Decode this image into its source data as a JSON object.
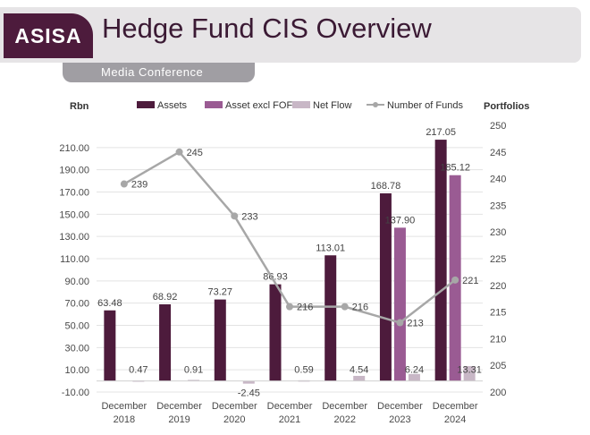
{
  "header": {
    "logo_text": "ASISA",
    "title": "Hedge Fund CIS Overview",
    "subtitle": "Media Conference"
  },
  "colors": {
    "assets": "#4d1b3c",
    "asset_excl_fof": "#9a5b93",
    "net_flow": "#c8b7c6",
    "number_of_funds": "#a7a7a7"
  },
  "chart_data": {
    "type": "bar",
    "ylabel": "Rbn",
    "y2label": "Portfolios",
    "categories": [
      [
        "December",
        "2018"
      ],
      [
        "December",
        "2019"
      ],
      [
        "December",
        "2020"
      ],
      [
        "December",
        "2021"
      ],
      [
        "December",
        "2022"
      ],
      [
        "December",
        "2023"
      ],
      [
        "December",
        "2024"
      ]
    ],
    "ylim": [
      -10,
      230
    ],
    "yticks": [
      -10,
      10,
      30,
      50,
      70,
      90,
      110,
      130,
      150,
      170,
      190,
      210
    ],
    "ytick_labels": [
      "-10.00",
      "10.00",
      "30.00",
      "50.00",
      "70.00",
      "90.00",
      "110.00",
      "130.00",
      "150.00",
      "170.00",
      "190.00",
      "210.00"
    ],
    "y2lim": [
      200,
      250
    ],
    "y2ticks": [
      200,
      205,
      210,
      215,
      220,
      225,
      230,
      235,
      240,
      245,
      250
    ],
    "legend_position": "top",
    "series": [
      {
        "name": "Assets",
        "type": "bar",
        "values": [
          63.48,
          68.92,
          73.27,
          86.93,
          113.01,
          168.78,
          217.05
        ],
        "labels": [
          "63.48",
          "68.92",
          "73.27",
          "86.93",
          "113.01",
          "168.78",
          "217.05"
        ]
      },
      {
        "name": "Asset excl FOF",
        "type": "bar",
        "values": [
          null,
          null,
          null,
          null,
          null,
          137.9,
          185.12
        ],
        "labels": [
          "",
          "",
          "",
          "",
          "",
          "137.90",
          "185.12"
        ]
      },
      {
        "name": "Net Flow",
        "type": "bar",
        "values": [
          0.47,
          0.91,
          -2.45,
          0.59,
          4.54,
          6.24,
          13.31
        ],
        "labels": [
          "0.47",
          "0.91",
          "-2.45",
          "0.59",
          "4.54",
          "6.24",
          "13.31"
        ]
      },
      {
        "name": "Number of Funds",
        "type": "line",
        "axis": "secondary",
        "values": [
          239,
          245,
          233,
          216,
          216,
          213,
          221
        ],
        "labels": [
          "239",
          "245",
          "233",
          "216",
          "216",
          "213",
          "221"
        ]
      }
    ]
  }
}
